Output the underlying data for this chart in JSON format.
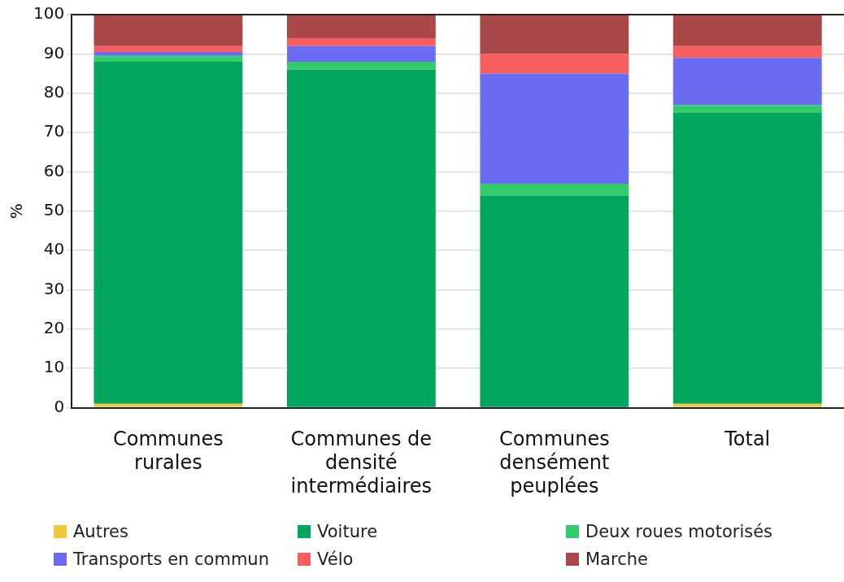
{
  "chart_data": {
    "type": "bar",
    "stacked": true,
    "ylabel": "%",
    "categories": [
      "Communes rurales",
      "Communes de densité intermédiaires",
      "Communes densément peuplées",
      "Total"
    ],
    "ylim": [
      0,
      100
    ],
    "yticks": [
      0,
      10,
      20,
      30,
      40,
      50,
      60,
      70,
      80,
      90,
      100
    ],
    "grid": "y",
    "legend": "bottom",
    "series": [
      {
        "name": "Autres",
        "color": "#f0c93a",
        "values": [
          1,
          0,
          0,
          1
        ]
      },
      {
        "name": "Voiture",
        "color": "#00a65d",
        "values": [
          87,
          86,
          54,
          74
        ]
      },
      {
        "name": "Deux roues motorisés",
        "color": "#34cc6b",
        "values": [
          1.5,
          2,
          3,
          2
        ]
      },
      {
        "name": "Transports en commun",
        "color": "#6c6cf2",
        "values": [
          1,
          4,
          28,
          12
        ]
      },
      {
        "name": "Vélo",
        "color": "#f85d60",
        "values": [
          1.5,
          2,
          5,
          3
        ]
      },
      {
        "name": "Marche",
        "color": "#a94848",
        "values": [
          8,
          6,
          10,
          8
        ]
      }
    ]
  }
}
